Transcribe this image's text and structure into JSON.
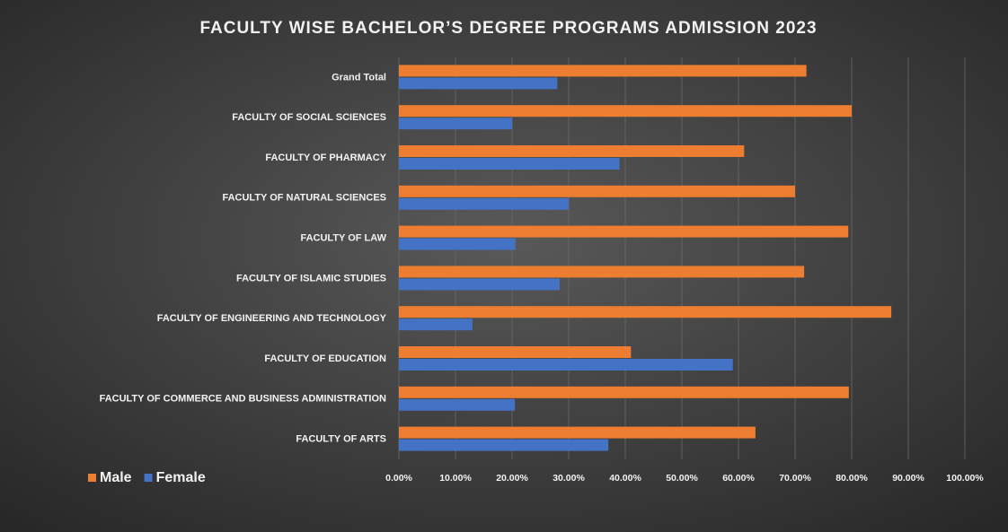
{
  "chart_data": {
    "type": "hbar",
    "title": "FACULTY WISE BACHELOR’S DEGREE PROGRAMS ADMISSION 2023",
    "categories": [
      "Grand Total",
      "FACULTY OF SOCIAL SCIENCES",
      "FACULTY OF PHARMACY",
      "FACULTY OF NATURAL SCIENCES",
      "FACULTY OF LAW",
      "FACULTY OF ISLAMIC STUDIES",
      "FACULTY OF ENGINEERING AND TECHNOLOGY",
      "FACULTY OF EDUCATION",
      "FACULTY OF COMMERCE AND BUSINESS ADMINISTRATION",
      "FACULTY OF ARTS"
    ],
    "series": [
      {
        "name": "Male",
        "color": "#ed7d31",
        "values": [
          72,
          80,
          61,
          70,
          79.4,
          71.6,
          87,
          41,
          79.5,
          63
        ]
      },
      {
        "name": "Female",
        "color": "#4472c4",
        "values": [
          28,
          20,
          39,
          30,
          20.6,
          28.4,
          13,
          59,
          20.5,
          37
        ]
      }
    ],
    "xlim": [
      0,
      100
    ],
    "xticks": [
      {
        "value": 0,
        "label": "0.00%"
      },
      {
        "value": 10,
        "label": "10.00%"
      },
      {
        "value": 20,
        "label": "20.00%"
      },
      {
        "value": 30,
        "label": "30.00%"
      },
      {
        "value": 40,
        "label": "40.00%"
      },
      {
        "value": 50,
        "label": "50.00%"
      },
      {
        "value": 60,
        "label": "60.00%"
      },
      {
        "value": 70,
        "label": "70.00%"
      },
      {
        "value": 80,
        "label": "80.00%"
      },
      {
        "value": 90,
        "label": "90.00%"
      },
      {
        "value": 100,
        "label": "100.00%"
      }
    ],
    "grid": true,
    "legend": "bottom-left"
  }
}
